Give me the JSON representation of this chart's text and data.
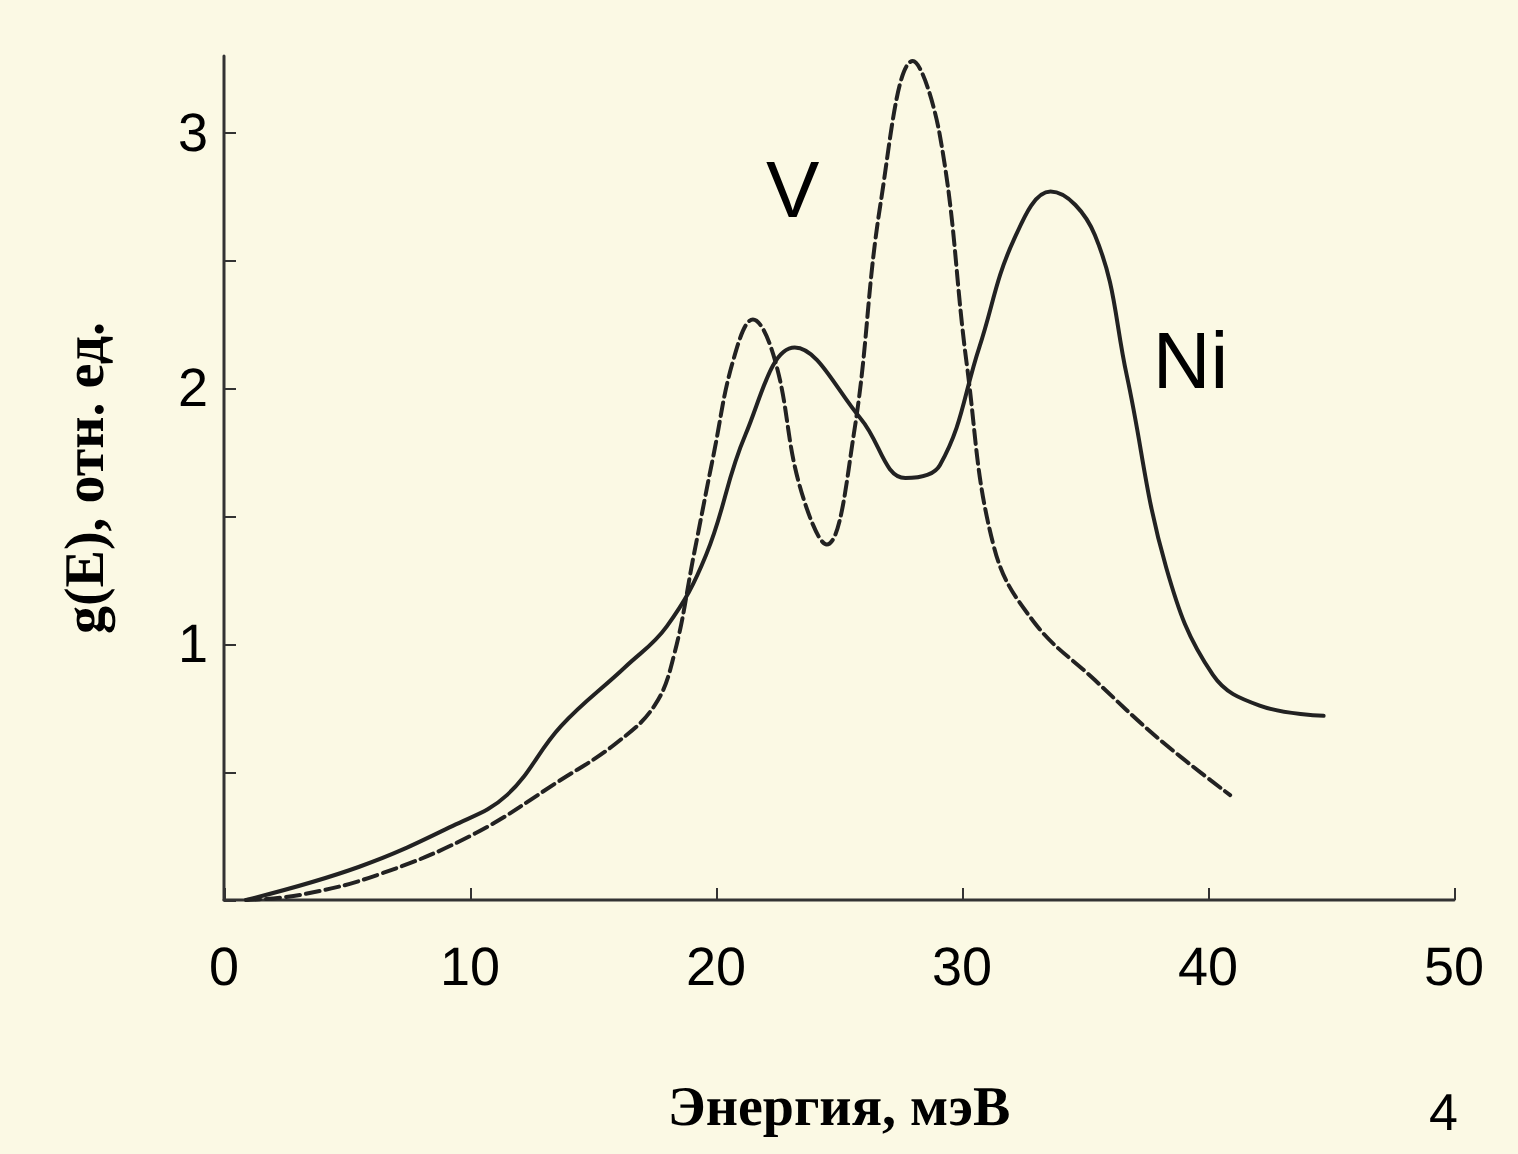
{
  "chart_data": {
    "type": "line",
    "xlabel": "Энергия, мэВ",
    "ylabel": "g(E), отн. ед.",
    "annotations": [
      "4"
    ],
    "xlim": [
      0,
      50
    ],
    "xticks": [
      0,
      10,
      20,
      30,
      40,
      50
    ],
    "ylim": [
      0,
      3.3
    ],
    "yticks": [
      {
        "value": 0,
        "label": null
      },
      {
        "value": 0.5,
        "label": null
      },
      1,
      {
        "value": 1.5,
        "label": null
      },
      2,
      {
        "value": 2.5,
        "label": null
      },
      3
    ],
    "marker": "none",
    "grid": false,
    "series": [
      {
        "name": "V",
        "color": "#222222",
        "line_style": "dashed",
        "x": [
          0.9,
          3.1,
          6.3,
          10.2,
          13.7,
          15.9,
          17.5,
          18.3,
          19.1,
          19.9,
          20.7,
          21.5,
          22.4,
          23.4,
          24.5,
          25.6,
          26.7,
          28.0,
          29.1,
          30.2,
          31.3,
          32.9,
          35.4,
          38.0,
          40.9
        ],
        "values": [
          0,
          0.02,
          0.1,
          0.26,
          0.47,
          0.61,
          0.76,
          0.96,
          1.35,
          1.74,
          2.11,
          2.27,
          2.11,
          1.62,
          1.39,
          1.82,
          2.73,
          3.28,
          2.99,
          2.09,
          1.38,
          1.09,
          0.86,
          0.63,
          0.41
        ]
      },
      {
        "name": "Ni",
        "color": "#222222",
        "line_style": "solid",
        "x": [
          0.9,
          5.5,
          9.3,
          11.5,
          13.7,
          16.3,
          18.0,
          19.6,
          21.2,
          23.2,
          25.9,
          27.7,
          29.1,
          30.7,
          32.1,
          33.6,
          35.4,
          36.7,
          38.3,
          40.2,
          42.1,
          44.7
        ],
        "values": [
          0,
          0.13,
          0.29,
          0.41,
          0.68,
          0.91,
          1.07,
          1.35,
          1.82,
          2.16,
          1.88,
          1.65,
          1.7,
          2.16,
          2.58,
          2.77,
          2.6,
          2.05,
          1.3,
          0.88,
          0.76,
          0.72
        ]
      }
    ]
  }
}
